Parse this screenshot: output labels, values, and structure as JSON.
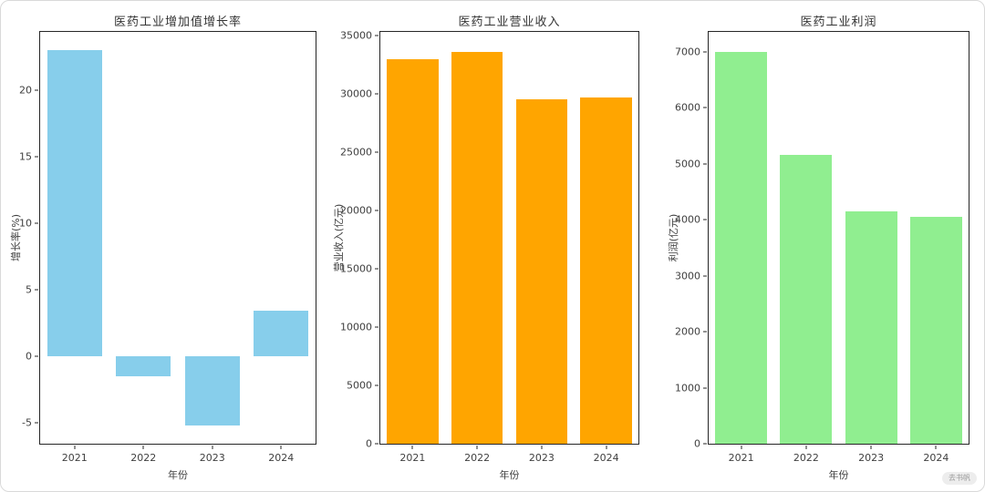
{
  "watermark": {
    "text": "去书帆"
  },
  "chart_data": [
    {
      "type": "bar",
      "title": "医药工业增加值增长率",
      "xlabel": "年份",
      "ylabel": "增长率(%)",
      "categories": [
        "2021",
        "2022",
        "2023",
        "2024"
      ],
      "values": [
        23,
        -1.5,
        -5.2,
        3.4
      ],
      "yticks": [
        -5,
        0,
        5,
        10,
        15,
        20
      ],
      "ylim": [
        -6.6,
        24.4
      ],
      "bar_color": "#87CEEB",
      "grid": false,
      "legend": false
    },
    {
      "type": "bar",
      "title": "医药工业营业收入",
      "xlabel": "年份",
      "ylabel": "营业收入(亿元)",
      "categories": [
        "2021",
        "2022",
        "2023",
        "2024"
      ],
      "values": [
        33000,
        33600,
        29500,
        29700
      ],
      "yticks": [
        0,
        5000,
        10000,
        15000,
        20000,
        25000,
        30000,
        35000
      ],
      "ylim": [
        0,
        35300
      ],
      "bar_color": "#FFA500",
      "grid": false,
      "legend": false
    },
    {
      "type": "bar",
      "title": "医药工业利润",
      "xlabel": "年份",
      "ylabel": "利润(亿元)",
      "categories": [
        "2021",
        "2022",
        "2023",
        "2024"
      ],
      "values": [
        7000,
        5150,
        4150,
        4050
      ],
      "yticks": [
        0,
        1000,
        2000,
        3000,
        4000,
        5000,
        6000,
        7000
      ],
      "ylim": [
        0,
        7350
      ],
      "bar_color": "#90EE90",
      "grid": false,
      "legend": false
    }
  ]
}
